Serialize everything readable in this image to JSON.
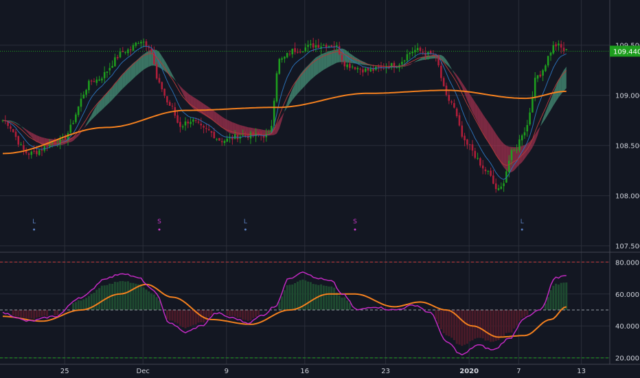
{
  "chart_data": [
    {
      "type": "candlestick",
      "y_ticks": [
        "109.500",
        "109.000",
        "108.500",
        "108.000",
        "107.500"
      ],
      "y_tick_values": [
        109.5,
        109.0,
        108.5,
        108.0,
        107.5
      ],
      "ylim": [
        107.45,
        109.95
      ],
      "current_price": "109.440",
      "current_price_value": 109.44,
      "x_ticks": [
        "25",
        "Dec",
        "9",
        "16",
        "23",
        "2020",
        "7",
        "13"
      ],
      "signals": [
        {
          "label": "L",
          "t": 12,
          "color": "#5b7fbf"
        },
        {
          "label": "S",
          "t": 60,
          "color": "#c838c8"
        },
        {
          "label": "L",
          "t": 93,
          "color": "#5b7fbf"
        },
        {
          "label": "S",
          "t": 135,
          "color": "#c838c8"
        },
        {
          "label": "L",
          "t": 199,
          "color": "#5b7fbf"
        }
      ],
      "close_anchors": [
        [
          0,
          108.75
        ],
        [
          10,
          108.42
        ],
        [
          22,
          108.55
        ],
        [
          35,
          109.15
        ],
        [
          48,
          109.45
        ],
        [
          53,
          109.55
        ],
        [
          56,
          109.5
        ],
        [
          60,
          109.1
        ],
        [
          64,
          108.9
        ],
        [
          68,
          108.7
        ],
        [
          72,
          108.75
        ],
        [
          78,
          108.65
        ],
        [
          84,
          108.55
        ],
        [
          92,
          108.6
        ],
        [
          102,
          108.6
        ],
        [
          106,
          109.35
        ],
        [
          112,
          109.45
        ],
        [
          120,
          109.5
        ],
        [
          127,
          109.5
        ],
        [
          132,
          109.3
        ],
        [
          140,
          109.25
        ],
        [
          150,
          109.3
        ],
        [
          158,
          109.45
        ],
        [
          165,
          109.4
        ],
        [
          171,
          108.95
        ],
        [
          178,
          108.5
        ],
        [
          185,
          108.25
        ],
        [
          190,
          108.05
        ],
        [
          196,
          108.45
        ],
        [
          200,
          108.65
        ],
        [
          205,
          109.2
        ],
        [
          212,
          109.5
        ],
        [
          216,
          109.44
        ]
      ],
      "sma200_anchors": [
        [
          0,
          108.42
        ],
        [
          40,
          108.68
        ],
        [
          70,
          108.85
        ],
        [
          105,
          108.88
        ],
        [
          140,
          109.02
        ],
        [
          170,
          109.05
        ],
        [
          200,
          108.97
        ],
        [
          216,
          109.04
        ]
      ],
      "colors": {
        "up": "#1e9e1e",
        "down": "#b01e3a",
        "sma": "#f5811f",
        "cloud_bull": "#4a9a7d",
        "cloud_bear": "#a83250",
        "ma_fast": "#2a6fb5",
        "ma_slow": "#b03a3a"
      }
    },
    {
      "type": "line",
      "y_ticks": [
        "80.000",
        "60.000",
        "40.000",
        "20.000"
      ],
      "y_tick_values": [
        80,
        60,
        40,
        20
      ],
      "ylim": [
        16,
        84
      ],
      "levels": {
        "upper": 80,
        "mid": 50,
        "lower": 20
      },
      "rsi_anchors": [
        [
          0,
          48
        ],
        [
          10,
          43
        ],
        [
          20,
          46
        ],
        [
          30,
          58
        ],
        [
          40,
          70
        ],
        [
          46,
          73
        ],
        [
          52,
          70
        ],
        [
          58,
          62
        ],
        [
          64,
          42
        ],
        [
          70,
          36
        ],
        [
          76,
          40
        ],
        [
          82,
          48
        ],
        [
          88,
          45
        ],
        [
          94,
          42
        ],
        [
          100,
          47
        ],
        [
          104,
          52
        ],
        [
          110,
          70
        ],
        [
          115,
          74
        ],
        [
          120,
          70
        ],
        [
          126,
          68
        ],
        [
          130,
          60
        ],
        [
          136,
          50
        ],
        [
          142,
          52
        ],
        [
          150,
          50
        ],
        [
          158,
          53
        ],
        [
          164,
          48
        ],
        [
          170,
          30
        ],
        [
          176,
          22
        ],
        [
          182,
          28
        ],
        [
          188,
          25
        ],
        [
          194,
          32
        ],
        [
          200,
          45
        ],
        [
          206,
          50
        ],
        [
          212,
          70
        ],
        [
          216,
          72
        ]
      ],
      "ma_anchors": [
        [
          0,
          46
        ],
        [
          15,
          43
        ],
        [
          30,
          50
        ],
        [
          45,
          60
        ],
        [
          55,
          66
        ],
        [
          65,
          58
        ],
        [
          80,
          44
        ],
        [
          95,
          41
        ],
        [
          110,
          50
        ],
        [
          125,
          60
        ],
        [
          135,
          60
        ],
        [
          150,
          52
        ],
        [
          160,
          55
        ],
        [
          170,
          50
        ],
        [
          180,
          40
        ],
        [
          190,
          33
        ],
        [
          200,
          34
        ],
        [
          210,
          44
        ],
        [
          216,
          52
        ]
      ],
      "colors": {
        "rsi": "#c32ac3",
        "ma": "#f5811f",
        "hist_up": "#1e4a30",
        "hist_down": "#4a1a28"
      }
    }
  ]
}
